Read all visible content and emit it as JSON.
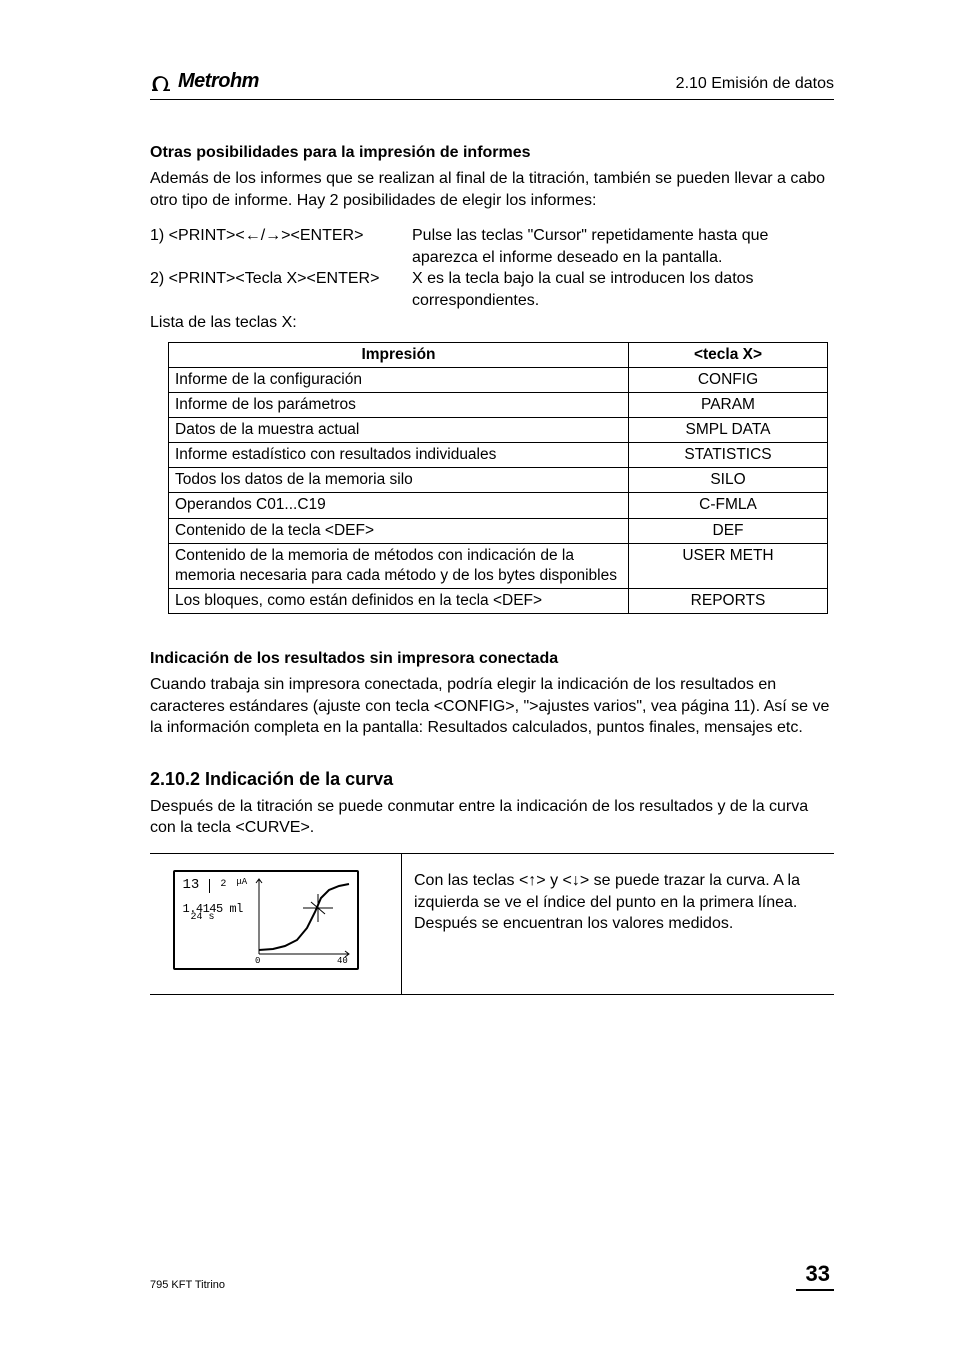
{
  "header": {
    "brand": "Metrohm",
    "section_ref": "2.10 Emisión de datos"
  },
  "s1": {
    "heading": "Otras posibilidades para la impresión de informes",
    "intro": "Además de los informes que se realizan al final de la titración, también se pueden llevar a cabo otro tipo de informe. Hay 2 posibilidades de elegir los informes:",
    "row1_left": "1) <PRINT><←/→><ENTER>",
    "row1_right": "Pulse las teclas \"Cursor\" repetidamente hasta que aparezca el informe deseado en la pantalla.",
    "row2_left": "2) <PRINT><Tecla X><ENTER>",
    "row2_right": "X es la tecla bajo la cual se introducen los datos correspondientes.",
    "list_label": "Lista de las teclas X:"
  },
  "table": {
    "col1": "Impresión",
    "col2": "<tecla X>",
    "rows": [
      {
        "a": "Informe de la configuración",
        "b": "CONFIG"
      },
      {
        "a": "Informe de los parámetros",
        "b": "PARAM"
      },
      {
        "a": "Datos de la muestra actual",
        "b": "SMPL DATA"
      },
      {
        "a": "Informe estadístico con resultados individuales",
        "b": "STATISTICS"
      },
      {
        "a": "Todos los datos de la memoria silo",
        "b": "SILO"
      },
      {
        "a": "Operandos C01...C19",
        "b": "C-FMLA"
      },
      {
        "a": "Contenido de la tecla <DEF>",
        "b": "DEF"
      },
      {
        "a": "Contenido de la memoria de métodos con indicación de la memoria necesaria para cada método y de los bytes disponibles",
        "b": "USER METH"
      },
      {
        "a": "Los bloques, como están definidos en la tecla <DEF>",
        "b": "REPORTS"
      }
    ]
  },
  "s2": {
    "heading": "Indicación de los resultados sin impresora conectada",
    "para": "Cuando trabaja sin impresora conectada, podría elegir la indicación de los resultados en caracteres estándares (ajuste con tecla <CONFIG>, \">ajustes varios\", vea página 11). Así se ve la información completa en la pantalla: Resultados calculados, puntos finales, mensajes etc."
  },
  "s3": {
    "heading": "2.10.2  Indicación de la curva",
    "intro": "Después de la titración se puede conmutar entre la indicación de los resultados y de la curva con la tecla <CURVE>.",
    "lcd": {
      "idx": "13",
      "unit_top": "μA",
      "val": "1.4145 ml",
      "sub": "24 s",
      "axis_zero": "0",
      "axis_end": "40"
    },
    "right": "Con las teclas <↑> y <↓> se puede trazar la curva. A la izquierda se ve el índice del punto en la primera línea. Después se encuentran los valores medidos."
  },
  "footer": {
    "left": "795 KFT Titrino",
    "page": "33"
  }
}
